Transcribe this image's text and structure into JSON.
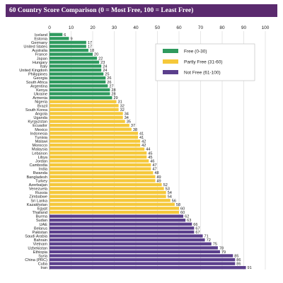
{
  "header": {
    "title": "60 Country Score Comparison (0 = Most Free, 100 = Least Free)"
  },
  "colors": {
    "free": "#2e9a5e",
    "partly": "#f5c83a",
    "not_free": "#5b3f8c"
  },
  "chart_data": {
    "type": "bar",
    "orientation": "horizontal",
    "title": "60 Country Score Comparison (0 = Most Free, 100 = Least Free)",
    "xlim": [
      0,
      100
    ],
    "xticks": [
      0,
      10,
      20,
      30,
      40,
      50,
      60,
      70,
      80,
      90,
      100
    ],
    "grid": true,
    "legend_position": "top-right",
    "legend": [
      {
        "key": "free",
        "label": "Free (0-30)"
      },
      {
        "key": "partly",
        "label": "Partly Free (31-60)"
      },
      {
        "key": "not_free",
        "label": "Not Free (61-100)"
      }
    ],
    "categories": [
      "Iceland",
      "Estonia",
      "Germany",
      "United States",
      "Australia",
      "France",
      "Japan",
      "Hungary",
      "Italy",
      "United Kingdom",
      "Philippines",
      "Georgia",
      "South Africa",
      "Argentina",
      "Kenya",
      "Ukraine",
      "Armenia",
      "Nigeria",
      "Brazil",
      "South Korea",
      "Angola",
      "Uganda",
      "Kyrgyzstan",
      "Ecuador",
      "Mexico",
      "Indonesia",
      "Tunisia",
      "Malawi",
      "Morocco",
      "Malaysia",
      "Lebanon",
      "Libya",
      "Jordan",
      "Cambodia",
      "India",
      "Rwanda",
      "Bangladesh",
      "Turkey",
      "Azerbaijan",
      "Venezuela",
      "Russia",
      "Zimbabwe",
      "Sri Lanka",
      "Kazakhstan",
      "Egypt",
      "Thailand",
      "Burma",
      "Sudan",
      "UAE",
      "Belarus",
      "Pakistan",
      "Saudi Arabia",
      "Bahrain",
      "Vietnam",
      "Uzbekistan",
      "Ethiopia",
      "Syria",
      "China (PRC)",
      "Cuba",
      "Iran"
    ],
    "values": [
      6,
      9,
      17,
      17,
      18,
      20,
      22,
      23,
      24,
      24,
      25,
      26,
      26,
      27,
      28,
      28,
      29,
      31,
      32,
      32,
      34,
      34,
      35,
      37,
      38,
      41,
      41,
      42,
      42,
      44,
      45,
      45,
      46,
      47,
      47,
      48,
      49,
      49,
      52,
      53,
      54,
      54,
      56,
      58,
      60,
      60,
      62,
      63,
      66,
      67,
      67,
      71,
      72,
      75,
      78,
      79,
      85,
      86,
      86,
      91
    ],
    "category_colors": [
      "free",
      "free",
      "free",
      "free",
      "free",
      "free",
      "free",
      "free",
      "free",
      "free",
      "free",
      "free",
      "free",
      "free",
      "free",
      "free",
      "free",
      "partly",
      "partly",
      "partly",
      "partly",
      "partly",
      "partly",
      "partly",
      "partly",
      "partly",
      "partly",
      "partly",
      "partly",
      "partly",
      "partly",
      "partly",
      "partly",
      "partly",
      "partly",
      "partly",
      "partly",
      "partly",
      "partly",
      "partly",
      "partly",
      "partly",
      "partly",
      "partly",
      "partly",
      "partly",
      "not_free",
      "not_free",
      "not_free",
      "not_free",
      "not_free",
      "not_free",
      "not_free",
      "not_free",
      "not_free",
      "not_free",
      "not_free",
      "not_free",
      "not_free",
      "not_free"
    ]
  }
}
